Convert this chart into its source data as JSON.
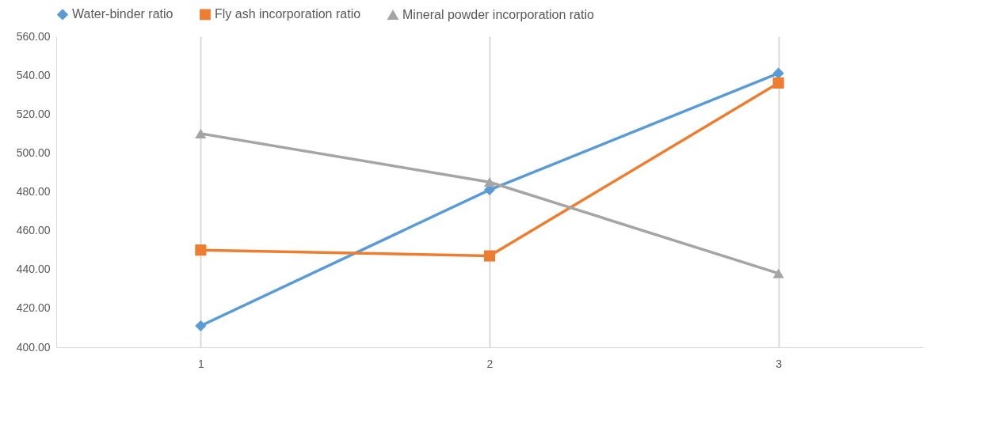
{
  "chart_data": {
    "type": "line",
    "categories": [
      "1",
      "2",
      "3"
    ],
    "series": [
      {
        "name": "Water-binder ratio",
        "color": "#5b9bd5",
        "marker": "diamond",
        "values": [
          411,
          481,
          541
        ]
      },
      {
        "name": "Fly ash incorporation ratio",
        "color": "#ed7d31",
        "marker": "square",
        "values": [
          450,
          447,
          536
        ]
      },
      {
        "name": "Mineral powder incorporation ratio",
        "color": "#a5a5a5",
        "marker": "triangle",
        "values": [
          510,
          485,
          438
        ]
      }
    ],
    "ylim": [
      400,
      560
    ],
    "yticks": [
      {
        "value": 400,
        "label": "400.00"
      },
      {
        "value": 420,
        "label": "420.00"
      },
      {
        "value": 440,
        "label": "440.00"
      },
      {
        "value": 460,
        "label": "460.00"
      },
      {
        "value": 480,
        "label": "480.00"
      },
      {
        "value": 500,
        "label": "500.00"
      },
      {
        "value": 520,
        "label": "520.00"
      },
      {
        "value": 540,
        "label": "540.00"
      },
      {
        "value": 560,
        "label": "560.00"
      }
    ],
    "grid": "x",
    "legend": "top",
    "line_style": "solid"
  }
}
